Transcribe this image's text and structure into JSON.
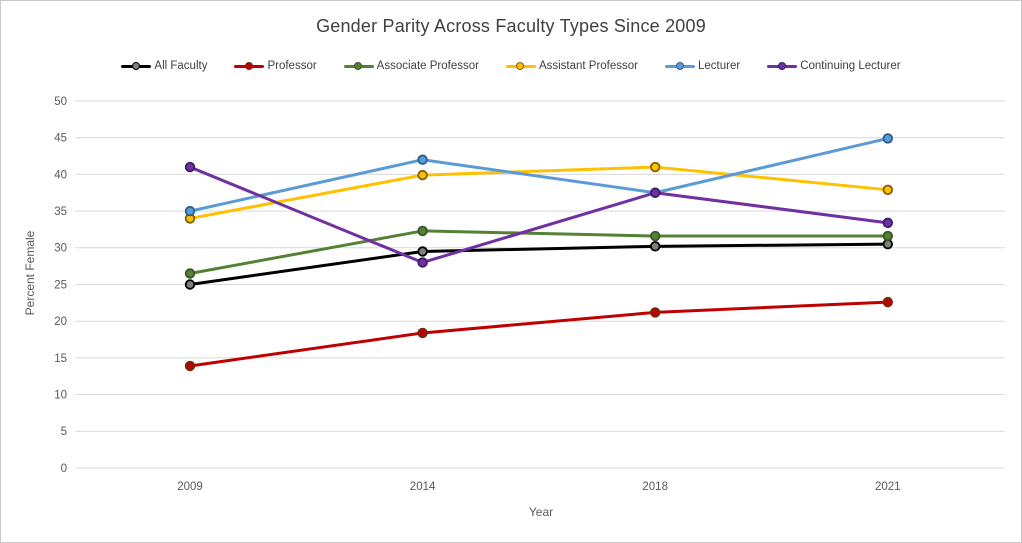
{
  "chart_data": {
    "type": "line",
    "title": "Gender Parity Across Faculty Types Since 2009",
    "xlabel": "Year",
    "ylabel": "Percent Female",
    "categories": [
      "2009",
      "2014",
      "2018",
      "2021"
    ],
    "ylim": [
      0,
      50
    ],
    "ytick_step": 5,
    "yticks": [
      0,
      5,
      10,
      15,
      20,
      25,
      30,
      35,
      40,
      45,
      50
    ],
    "grid": true,
    "legend_position": "top",
    "background": "#ffffff",
    "gridline_color": "#d9d9d9",
    "tick_label_color": "#595959",
    "title_color": "#404040",
    "series": [
      {
        "name": "All Faculty",
        "color": "#000000",
        "marker_fill": "#7f7f7f",
        "marker_border": "#000000",
        "values": [
          25.0,
          29.5,
          30.2,
          30.5
        ]
      },
      {
        "name": "Professor",
        "color": "#c00000",
        "marker_fill": "#c00000",
        "marker_border": "#6e2c09",
        "values": [
          13.9,
          18.4,
          21.2,
          22.6
        ]
      },
      {
        "name": "Associate Professor",
        "color": "#548235",
        "marker_fill": "#548235",
        "marker_border": "#375623",
        "values": [
          26.5,
          32.3,
          31.6,
          31.6
        ]
      },
      {
        "name": "Assistant Professor",
        "color": "#ffc000",
        "marker_fill": "#ffc000",
        "marker_border": "#7f6000",
        "values": [
          34.0,
          39.9,
          41.0,
          37.9
        ]
      },
      {
        "name": "Lecturer",
        "color": "#5b9bd5",
        "marker_fill": "#5b9bd5",
        "marker_border": "#2c5f8a",
        "values": [
          35.0,
          42.0,
          37.5,
          44.9
        ]
      },
      {
        "name": "Continuing Lecturer",
        "color": "#7030a0",
        "marker_fill": "#7030a0",
        "marker_border": "#3a1d66",
        "values": [
          41.0,
          28.0,
          37.5,
          33.4
        ]
      }
    ]
  }
}
